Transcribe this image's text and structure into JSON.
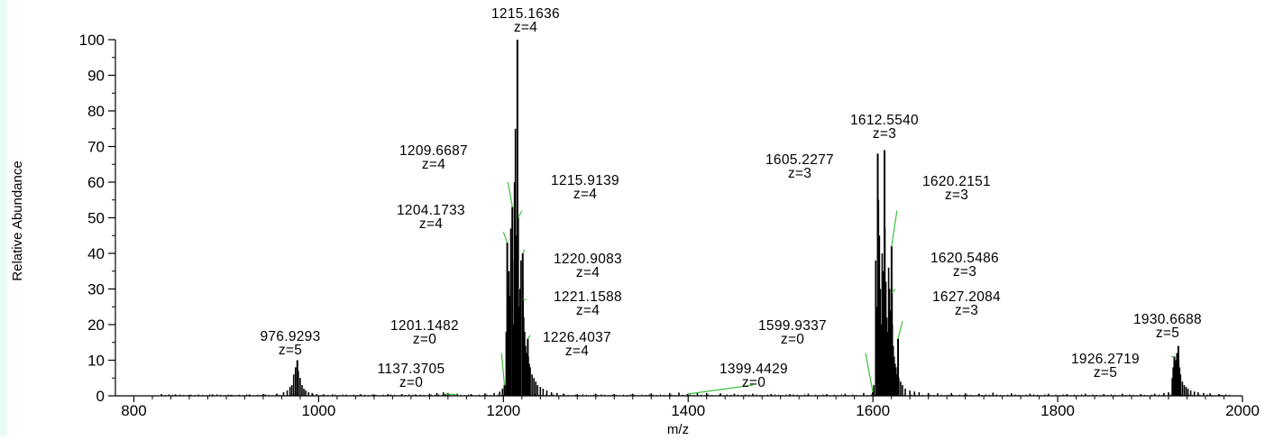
{
  "chart_data": {
    "type": "bar",
    "title": "",
    "xlabel": "m/z",
    "ylabel": "Relative Abundance",
    "xlim": [
      780,
      2000
    ],
    "ylim": [
      0,
      100
    ],
    "x_ticks": [
      800,
      1000,
      1200,
      1400,
      1600,
      1800,
      2000
    ],
    "y_ticks": [
      0,
      10,
      20,
      30,
      40,
      50,
      60,
      70,
      80,
      90,
      100
    ],
    "grid": false,
    "peaks": [
      {
        "x": 976.9293,
        "y": 10,
        "mz_label": "976.9293",
        "z_label": "z=5"
      },
      {
        "x": 1137.3705,
        "y": 0.5,
        "mz_label": "1137.3705",
        "z_label": "z=0"
      },
      {
        "x": 1201.1482,
        "y": 3,
        "mz_label": "1201.1482",
        "z_label": "z=0"
      },
      {
        "x": 1204.1733,
        "y": 43,
        "mz_label": "1204.1733",
        "z_label": "z=4"
      },
      {
        "x": 1209.6687,
        "y": 53,
        "mz_label": "1209.6687",
        "z_label": "z=4"
      },
      {
        "x": 1215.1636,
        "y": 100,
        "mz_label": "1215.1636",
        "z_label": "z=4"
      },
      {
        "x": 1215.9139,
        "y": 50,
        "mz_label": "1215.9139",
        "z_label": "z=4"
      },
      {
        "x": 1220.9083,
        "y": 40,
        "mz_label": "1220.9083",
        "z_label": "z=4"
      },
      {
        "x": 1221.1588,
        "y": 27,
        "mz_label": "1221.1588",
        "z_label": "z=4"
      },
      {
        "x": 1226.4037,
        "y": 16,
        "mz_label": "1226.4037",
        "z_label": "z=4"
      },
      {
        "x": 1399.4429,
        "y": 0.5,
        "mz_label": "1399.4429",
        "z_label": "z=0"
      },
      {
        "x": 1599.9337,
        "y": 1,
        "mz_label": "1599.9337",
        "z_label": "z=0"
      },
      {
        "x": 1605.2277,
        "y": 68,
        "mz_label": "1605.2277",
        "z_label": "z=3"
      },
      {
        "x": 1612.554,
        "y": 69,
        "mz_label": "1612.5540",
        "z_label": "z=3"
      },
      {
        "x": 1620.2151,
        "y": 42,
        "mz_label": "1620.2151",
        "z_label": "z=3"
      },
      {
        "x": 1620.5486,
        "y": 29,
        "mz_label": "1620.5486",
        "z_label": "z=3"
      },
      {
        "x": 1627.2084,
        "y": 16,
        "mz_label": "1627.2084",
        "z_label": "z=3"
      },
      {
        "x": 1926.2719,
        "y": 11,
        "mz_label": "1926.2719",
        "z_label": "z=5"
      },
      {
        "x": 1930.6688,
        "y": 14,
        "mz_label": "1930.6688",
        "z_label": "z=5"
      }
    ],
    "minor_peaks": [
      [
        830,
        0.5
      ],
      [
        845,
        0.4
      ],
      [
        860,
        0.3
      ],
      [
        885,
        0.4
      ],
      [
        905,
        0.3
      ],
      [
        925,
        0.4
      ],
      [
        940,
        0.5
      ],
      [
        955,
        0.6
      ],
      [
        962,
        1
      ],
      [
        966,
        1.5
      ],
      [
        969,
        2.5
      ],
      [
        971,
        3
      ],
      [
        973,
        6
      ],
      [
        975,
        8
      ],
      [
        978,
        7
      ],
      [
        980,
        5
      ],
      [
        982,
        3
      ],
      [
        984,
        2
      ],
      [
        986,
        1.5
      ],
      [
        989,
        1
      ],
      [
        993,
        0.8
      ],
      [
        998,
        0.5
      ],
      [
        1005,
        0.4
      ],
      [
        1015,
        0.4
      ],
      [
        1030,
        0.3
      ],
      [
        1045,
        0.4
      ],
      [
        1060,
        0.4
      ],
      [
        1075,
        0.5
      ],
      [
        1090,
        0.5
      ],
      [
        1105,
        0.4
      ],
      [
        1120,
        0.6
      ],
      [
        1128,
        0.8
      ],
      [
        1135,
        1
      ],
      [
        1140,
        0.8
      ],
      [
        1150,
        0.6
      ],
      [
        1165,
        0.5
      ],
      [
        1180,
        0.7
      ],
      [
        1190,
        0.8
      ],
      [
        1196,
        1.2
      ],
      [
        1199,
        2
      ],
      [
        1203,
        18
      ],
      [
        1205,
        30
      ],
      [
        1206,
        35
      ],
      [
        1207,
        28
      ],
      [
        1208,
        47
      ],
      [
        1210,
        38
      ],
      [
        1211,
        20
      ],
      [
        1212,
        60
      ],
      [
        1213,
        75
      ],
      [
        1214,
        45
      ],
      [
        1216,
        33
      ],
      [
        1217,
        25
      ],
      [
        1218,
        30
      ],
      [
        1219,
        38
      ],
      [
        1221,
        32
      ],
      [
        1222,
        22
      ],
      [
        1223,
        18
      ],
      [
        1224,
        14
      ],
      [
        1225,
        12
      ],
      [
        1227,
        11
      ],
      [
        1228,
        9
      ],
      [
        1229,
        8
      ],
      [
        1231,
        6
      ],
      [
        1233,
        5
      ],
      [
        1235,
        4
      ],
      [
        1237,
        3
      ],
      [
        1240,
        2.5
      ],
      [
        1243,
        2
      ],
      [
        1247,
        1.5
      ],
      [
        1252,
        1
      ],
      [
        1258,
        0.8
      ],
      [
        1265,
        0.6
      ],
      [
        1280,
        0.5
      ],
      [
        1300,
        0.6
      ],
      [
        1320,
        0.5
      ],
      [
        1340,
        0.6
      ],
      [
        1360,
        0.7
      ],
      [
        1380,
        0.8
      ],
      [
        1390,
        0.9
      ],
      [
        1410,
        0.9
      ],
      [
        1420,
        0.8
      ],
      [
        1435,
        0.7
      ],
      [
        1450,
        0.6
      ],
      [
        1470,
        0.6
      ],
      [
        1490,
        0.5
      ],
      [
        1510,
        0.5
      ],
      [
        1530,
        0.6
      ],
      [
        1550,
        0.5
      ],
      [
        1570,
        0.6
      ],
      [
        1590,
        0.8
      ],
      [
        1601,
        3
      ],
      [
        1603,
        38
      ],
      [
        1604,
        25
      ],
      [
        1606,
        55
      ],
      [
        1607,
        45
      ],
      [
        1608,
        30
      ],
      [
        1609,
        20
      ],
      [
        1610,
        40
      ],
      [
        1611,
        35
      ],
      [
        1613,
        47
      ],
      [
        1614,
        32
      ],
      [
        1615,
        22
      ],
      [
        1616,
        18
      ],
      [
        1617,
        36
      ],
      [
        1618,
        30
      ],
      [
        1619,
        24
      ],
      [
        1621,
        20
      ],
      [
        1622,
        14
      ],
      [
        1623,
        11
      ],
      [
        1624,
        9
      ],
      [
        1625,
        8
      ],
      [
        1626,
        6
      ],
      [
        1628,
        5
      ],
      [
        1630,
        4
      ],
      [
        1632,
        3
      ],
      [
        1635,
        2
      ],
      [
        1640,
        1.5
      ],
      [
        1645,
        1.2
      ],
      [
        1650,
        1
      ],
      [
        1660,
        0.8
      ],
      [
        1670,
        0.7
      ],
      [
        1685,
        0.8
      ],
      [
        1700,
        0.7
      ],
      [
        1715,
        0.6
      ],
      [
        1730,
        0.9
      ],
      [
        1750,
        0.7
      ],
      [
        1770,
        0.6
      ],
      [
        1790,
        0.6
      ],
      [
        1810,
        0.5
      ],
      [
        1830,
        0.6
      ],
      [
        1850,
        0.5
      ],
      [
        1870,
        0.6
      ],
      [
        1890,
        0.5
      ],
      [
        1905,
        0.6
      ],
      [
        1915,
        0.8
      ],
      [
        1920,
        1
      ],
      [
        1924,
        5
      ],
      [
        1925,
        8
      ],
      [
        1927,
        9
      ],
      [
        1928,
        10
      ],
      [
        1929,
        12
      ],
      [
        1931,
        10
      ],
      [
        1932,
        8
      ],
      [
        1933,
        6
      ],
      [
        1935,
        4
      ],
      [
        1937,
        3
      ],
      [
        1939,
        2.5
      ],
      [
        1941,
        2
      ],
      [
        1944,
        1.5
      ],
      [
        1948,
        1.2
      ],
      [
        1952,
        1
      ],
      [
        1958,
        0.8
      ],
      [
        1965,
        0.7
      ],
      [
        1975,
        0.5
      ]
    ]
  }
}
